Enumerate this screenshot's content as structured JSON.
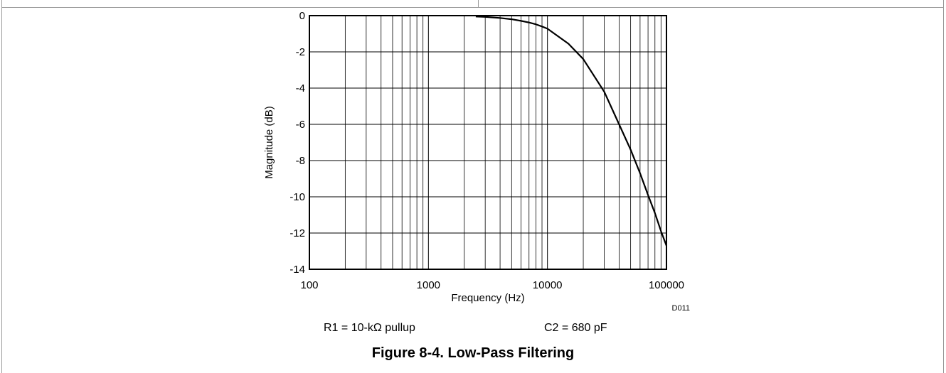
{
  "figure": {
    "caption": "Figure 8-4. Low-Pass Filtering",
    "code": "D011",
    "notes": [
      "R1 = 10-kΩ pullup",
      "C2 = 680 pF"
    ]
  },
  "chart_data": {
    "type": "line",
    "xlabel": "Frequency (Hz)",
    "ylabel": "Magnitude (dB)",
    "xscale": "log",
    "xlim": [
      100,
      100000
    ],
    "ylim": [
      -14,
      0
    ],
    "xticks": [
      "100",
      "1000",
      "10000",
      "100000"
    ],
    "yticks": [
      "0",
      "-2",
      "-4",
      "-6",
      "-8",
      "-10",
      "-12",
      "-14"
    ],
    "grid": true,
    "series": [
      {
        "x": [
          2500,
          3000,
          4000,
          5000,
          6000,
          7000,
          8000,
          9000,
          10000,
          15000,
          20000,
          30000,
          40000,
          50000,
          60000,
          70000,
          80000,
          90000,
          100000
        ],
        "y": [
          -0.05,
          -0.07,
          -0.13,
          -0.2,
          -0.29,
          -0.38,
          -0.48,
          -0.6,
          -0.72,
          -1.55,
          -2.4,
          -4.2,
          -6.0,
          -7.4,
          -8.7,
          -9.9,
          -10.9,
          -11.9,
          -12.7
        ],
        "color": "#000000"
      }
    ]
  }
}
